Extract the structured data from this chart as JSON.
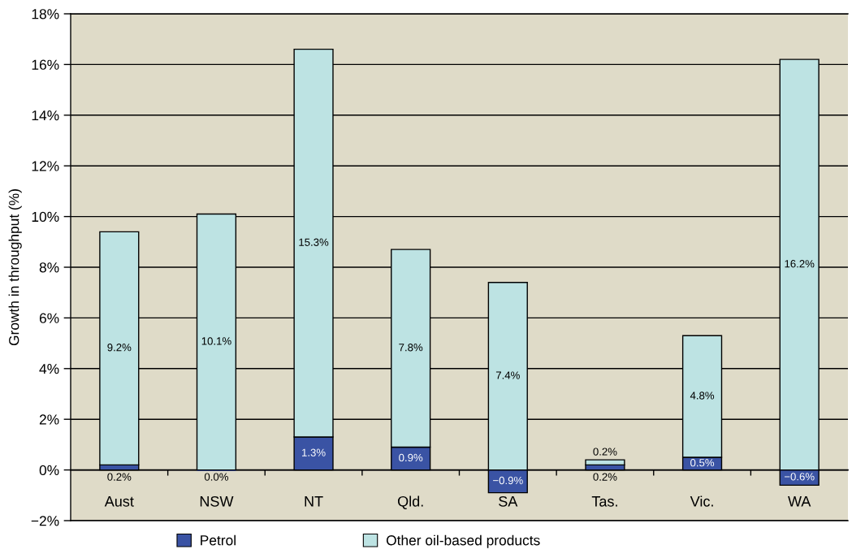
{
  "chart_data": {
    "type": "bar",
    "stacked": true,
    "ylabel": "Growth in throughput (%)",
    "categories": [
      "Aust",
      "NSW",
      "NT",
      "Qld.",
      "SA",
      "Tas.",
      "Vic.",
      "WA"
    ],
    "series": [
      {
        "name": "Petrol",
        "color": "#3a53a4",
        "values": [
          0.2,
          0.0,
          1.3,
          0.9,
          -0.9,
          0.2,
          0.5,
          -0.6
        ],
        "value_labels": [
          "0.2%",
          "0.0%",
          "1.3%",
          "0.9%",
          "−0.9%",
          "0.2%",
          "0.5%",
          "−0.6%"
        ]
      },
      {
        "name": "Other oil-based products",
        "color": "#bde3e3",
        "values": [
          9.2,
          10.1,
          15.3,
          7.8,
          7.4,
          0.2,
          4.8,
          16.2
        ],
        "value_labels": [
          "9.2%",
          "10.1%",
          "15.3%",
          "7.8%",
          "7.4%",
          "0.2%",
          "4.8%",
          "16.2%"
        ]
      }
    ],
    "ylim": [
      -2,
      18
    ],
    "yticks": [
      {
        "value": -2,
        "label": "−2%"
      },
      {
        "value": 0,
        "label": "0%"
      },
      {
        "value": 2,
        "label": "2%"
      },
      {
        "value": 4,
        "label": "4%"
      },
      {
        "value": 6,
        "label": "6%"
      },
      {
        "value": 8,
        "label": "8%"
      },
      {
        "value": 10,
        "label": "10%"
      },
      {
        "value": 12,
        "label": "12%"
      },
      {
        "value": 14,
        "label": "14%"
      },
      {
        "value": 16,
        "label": "16%"
      },
      {
        "value": 18,
        "label": "18%"
      }
    ],
    "grid": "y",
    "legend": "bottom"
  }
}
